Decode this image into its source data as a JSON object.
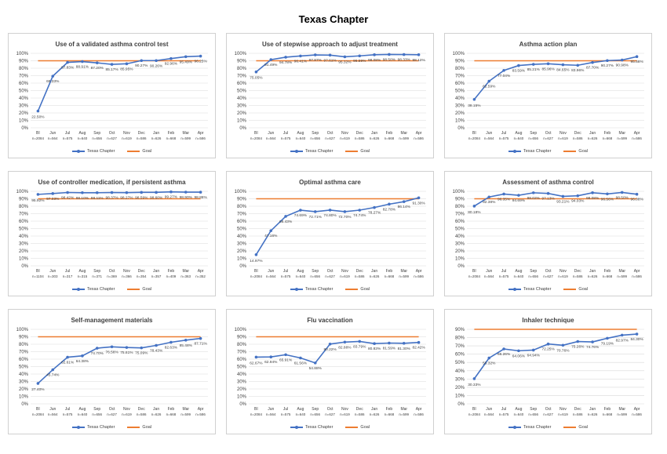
{
  "page": {
    "title": "Texas Chapter"
  },
  "legend": {
    "series_label": "Texas Chapter",
    "goal_label": "Goal"
  },
  "colors": {
    "series": "#4472c4",
    "goal": "#ed7d31",
    "grid": "#d9d9d9",
    "text": "#404040"
  },
  "chart_data": [
    {
      "type": "line",
      "title": "Use of a validated asthma control test",
      "categories": [
        "BI",
        "Jun",
        "Jul",
        "Aug",
        "Sep",
        "Oct",
        "Nov",
        "Dec",
        "Jan",
        "Feb",
        "Mar",
        "Apr"
      ],
      "n_labels": [
        "n=2084",
        "n=564",
        "n=575",
        "n=640",
        "n=656",
        "n=627",
        "n=619",
        "n=586",
        "n=626",
        "n=668",
        "n=599",
        "n=586"
      ],
      "series": [
        {
          "name": "Texas Chapter",
          "values": [
            22.5,
            69.33,
            87.83,
            88.91,
            87.2,
            85.17,
            85.95,
            90.27,
            90.26,
            92.96,
            95.49,
            96.25
          ]
        }
      ],
      "value_labels": [
        "22.50%",
        "69.33%",
        "87.83%",
        "88.91%",
        "87.20%",
        "85.17%",
        "85.95%",
        "90.27%",
        "90.26%",
        "92.96%",
        "95.49%",
        "96.25%"
      ],
      "goal": 90,
      "ylim": [
        0,
        100
      ],
      "yticks": [
        "0%",
        "10%",
        "20%",
        "30%",
        "40%",
        "50%",
        "60%",
        "70%",
        "80%",
        "90%",
        "100%"
      ]
    },
    {
      "type": "line",
      "title": "Use of stepwise approach to adjust treatment",
      "categories": [
        "BI",
        "Jun",
        "Jul",
        "Aug",
        "Sep",
        "Oct",
        "Nov",
        "Dec",
        "Jan",
        "Feb",
        "Mar",
        "Apr"
      ],
      "n_labels": [
        "n=2084",
        "n=564",
        "n=575",
        "n=640",
        "n=656",
        "n=627",
        "n=619",
        "n=586",
        "n=626",
        "n=668",
        "n=599",
        "n=586"
      ],
      "series": [
        {
          "name": "Texas Chapter",
          "values": [
            75.05,
            91.49,
            94.78,
            96.41,
            97.87,
            97.61,
            95.32,
            96.59,
            98.08,
            98.5,
            98.33,
            98.12
          ]
        }
      ],
      "value_labels": [
        "75.05%",
        "91.49%",
        "94.78%",
        "96.41%",
        "97.87%",
        "97.61%",
        "95.32%",
        "96.59%",
        "98.08%",
        "98.50%",
        "98.33%",
        "98.12%"
      ],
      "goal": 90,
      "ylim": [
        0,
        100
      ],
      "yticks": [
        "0%",
        "10%",
        "20%",
        "30%",
        "40%",
        "50%",
        "60%",
        "70%",
        "80%",
        "90%",
        "100%"
      ]
    },
    {
      "type": "line",
      "title": "Asthma action plan",
      "categories": [
        "BI",
        "Jun",
        "Jul",
        "Aug",
        "Sep",
        "Oct",
        "Nov",
        "Dec",
        "Jan",
        "Feb",
        "Mar",
        "Apr"
      ],
      "n_labels": [
        "n=2084",
        "n=564",
        "n=575",
        "n=640",
        "n=656",
        "n=627",
        "n=619",
        "n=586",
        "n=626",
        "n=668",
        "n=599",
        "n=586"
      ],
      "series": [
        {
          "name": "Texas Chapter",
          "values": [
            38.15,
            62.59,
            77.04,
            83.59,
            85.21,
            85.96,
            84.65,
            83.96,
            87.7,
            90.27,
            90.98,
            95.56
          ]
        }
      ],
      "value_labels": [
        "38.15%",
        "62.59%",
        "77.04%",
        "83.59%",
        "85.21%",
        "85.96%",
        "84.65%",
        "83.96%",
        "87.70%",
        "90.27%",
        "90.98%",
        "95.56%"
      ],
      "goal": 90,
      "ylim": [
        0,
        100
      ],
      "yticks": [
        "0%",
        "10%",
        "20%",
        "30%",
        "40%",
        "50%",
        "60%",
        "70%",
        "80%",
        "90%",
        "100%"
      ]
    },
    {
      "type": "line",
      "title": "Use of controller medication, if persistent asthma",
      "categories": [
        "BI",
        "Jun",
        "Jul",
        "Aug",
        "Sep",
        "Oct",
        "Nov",
        "Dec",
        "Jan",
        "Feb",
        "Mar",
        "Apr"
      ],
      "n_labels": [
        "n=1104",
        "n=303",
        "n=317",
        "n=315",
        "n=371",
        "n=369",
        "n=366",
        "n=354",
        "n=357",
        "n=409",
        "n=363",
        "n=352"
      ],
      "series": [
        {
          "name": "Texas Chapter",
          "values": [
            95.92,
            97.03,
            98.42,
            98.1,
            98.11,
            98.37,
            98.27,
            98.59,
            98.6,
            99.27,
            98.9,
            98.86
          ]
        }
      ],
      "value_labels": [
        "95.92%",
        "97.03%",
        "98.42%",
        "98.10%",
        "98.11%",
        "98.37%",
        "98.27%",
        "98.59%",
        "98.60%",
        "99.27%",
        "98.90%",
        "98.86%"
      ],
      "goal": 90,
      "ylim": [
        0,
        100
      ],
      "yticks": [
        "0%",
        "10%",
        "20%",
        "30%",
        "40%",
        "50%",
        "60%",
        "70%",
        "80%",
        "90%",
        "100%"
      ]
    },
    {
      "type": "line",
      "title": "Optimal asthma care",
      "categories": [
        "BI",
        "Jun",
        "Jul",
        "Aug",
        "Sep",
        "Oct",
        "Nov",
        "Dec",
        "Jan",
        "Feb",
        "Mar",
        "Apr"
      ],
      "n_labels": [
        "n=2084",
        "n=564",
        "n=575",
        "n=640",
        "n=656",
        "n=627",
        "n=619",
        "n=586",
        "n=626",
        "n=668",
        "n=599",
        "n=586"
      ],
      "series": [
        {
          "name": "Texas Chapter",
          "values": [
            14.97,
            47.16,
            66.43,
            74.69,
            72.71,
            74.8,
            72.7,
            74.74,
            78.27,
            82.78,
            86.14,
            91.3
          ]
        }
      ],
      "value_labels": [
        "14.97%",
        "47.16%",
        "66.43%",
        "74.69%",
        "72.71%",
        "74.80%",
        "72.70%",
        "74.74%",
        "78.27%",
        "82.78%",
        "86.14%",
        "91.30%"
      ],
      "goal": 90,
      "ylim": [
        0,
        100
      ],
      "yticks": [
        "0%",
        "10%",
        "20%",
        "30%",
        "40%",
        "50%",
        "60%",
        "70%",
        "80%",
        "90%",
        "100%"
      ]
    },
    {
      "type": "line",
      "title": "Assessment of asthma control",
      "categories": [
        "BI",
        "Jun",
        "Jul",
        "Aug",
        "Sep",
        "Oct",
        "Nov",
        "Dec",
        "Jan",
        "Feb",
        "Mar",
        "Apr"
      ],
      "n_labels": [
        "n=2084",
        "n=564",
        "n=575",
        "n=640",
        "n=656",
        "n=627",
        "n=619",
        "n=586",
        "n=626",
        "n=668",
        "n=599",
        "n=586"
      ],
      "series": [
        {
          "name": "Texas Chapter",
          "values": [
            80.18,
            92.38,
            96.35,
            94.69,
            98.02,
            97.13,
            93.21,
            94.03,
            98.08,
            96.56,
            98.5,
            96.08
          ]
        }
      ],
      "value_labels": [
        "80.18%",
        "92.38%",
        "96.35%",
        "94.69%",
        "98.02%",
        "97.13%",
        "93.21%",
        "94.03%",
        "98.08%",
        "96.56%",
        "98.50%",
        "96.08%"
      ],
      "goal": 90,
      "ylim": [
        0,
        100
      ],
      "yticks": [
        "0%",
        "10%",
        "20%",
        "30%",
        "40%",
        "50%",
        "60%",
        "70%",
        "80%",
        "90%",
        "100%"
      ]
    },
    {
      "type": "line",
      "title": "Self-management materials",
      "categories": [
        "BI",
        "Jun",
        "Jul",
        "Aug",
        "Sep",
        "Oct",
        "Nov",
        "Dec",
        "Jan",
        "Feb",
        "Mar",
        "Apr"
      ],
      "n_labels": [
        "n=2084",
        "n=564",
        "n=575",
        "n=640",
        "n=656",
        "n=627",
        "n=619",
        "n=586",
        "n=626",
        "n=668",
        "n=599",
        "n=586"
      ],
      "series": [
        {
          "name": "Texas Chapter",
          "values": [
            27.4,
            45.74,
            62.61,
            64.38,
            74.7,
            76.56,
            75.61,
            75.09,
            78.43,
            82.63,
            85.48,
            87.71
          ]
        }
      ],
      "value_labels": [
        "27.40%",
        "45.74%",
        "62.61%",
        "64.38%",
        "74.70%",
        "76.56%",
        "75.61%",
        "75.09%",
        "78.43%",
        "82.63%",
        "85.48%",
        "87.71%"
      ],
      "goal": 90,
      "ylim": [
        0,
        100
      ],
      "yticks": [
        "0%",
        "10%",
        "20%",
        "30%",
        "40%",
        "50%",
        "60%",
        "70%",
        "80%",
        "90%",
        "100%"
      ]
    },
    {
      "type": "line",
      "title": "Flu vaccination",
      "categories": [
        "BI",
        "Jun",
        "Jul",
        "Aug",
        "Sep",
        "Oct",
        "Nov",
        "Dec",
        "Jan",
        "Feb",
        "Mar",
        "Apr"
      ],
      "n_labels": [
        "n=2084",
        "n=564",
        "n=575",
        "n=640",
        "n=656",
        "n=627",
        "n=619",
        "n=586",
        "n=626",
        "n=668",
        "n=599",
        "n=586"
      ],
      "series": [
        {
          "name": "Texas Chapter",
          "values": [
            62.67,
            62.94,
            65.91,
            61.56,
            54.88,
            80.22,
            82.88,
            83.79,
            80.83,
            81.59,
            81.3,
            82.42
          ]
        }
      ],
      "value_labels": [
        "62.67%",
        "62.94%",
        "65.91%",
        "61.56%",
        "54.88%",
        "80.22%",
        "82.88%",
        "83.79%",
        "80.83%",
        "81.59%",
        "81.30%",
        "82.42%"
      ],
      "goal": 90,
      "ylim": [
        0,
        100
      ],
      "yticks": [
        "0%",
        "10%",
        "20%",
        "30%",
        "40%",
        "50%",
        "60%",
        "70%",
        "80%",
        "90%",
        "100%"
      ]
    },
    {
      "type": "line",
      "title": "Inhaler technique",
      "categories": [
        "BI",
        "Jun",
        "Jul",
        "Aug",
        "Sep",
        "Oct",
        "Nov",
        "Dec",
        "Jan",
        "Feb",
        "Mar",
        "Apr"
      ],
      "n_labels": [
        "n=2084",
        "n=564",
        "n=575",
        "n=640",
        "n=656",
        "n=627",
        "n=619",
        "n=586",
        "n=626",
        "n=668",
        "n=599",
        "n=586"
      ],
      "series": [
        {
          "name": "Texas Chapter",
          "values": [
            30.33,
            55.32,
            66.26,
            64.06,
            64.94,
            72.25,
            70.76,
            75.26,
            74.76,
            79.19,
            82.97,
            84.3
          ]
        }
      ],
      "value_labels": [
        "30.33%",
        "55.32%",
        "66.26%",
        "64.06%",
        "64.94%",
        "72.25%",
        "70.76%",
        "75.26%",
        "74.76%",
        "79.19%",
        "82.97%",
        "84.30%"
      ],
      "goal": 90,
      "ylim": [
        0,
        90
      ],
      "yticks": [
        "0%",
        "10%",
        "20%",
        "30%",
        "40%",
        "50%",
        "60%",
        "70%",
        "80%",
        "90%"
      ]
    }
  ]
}
